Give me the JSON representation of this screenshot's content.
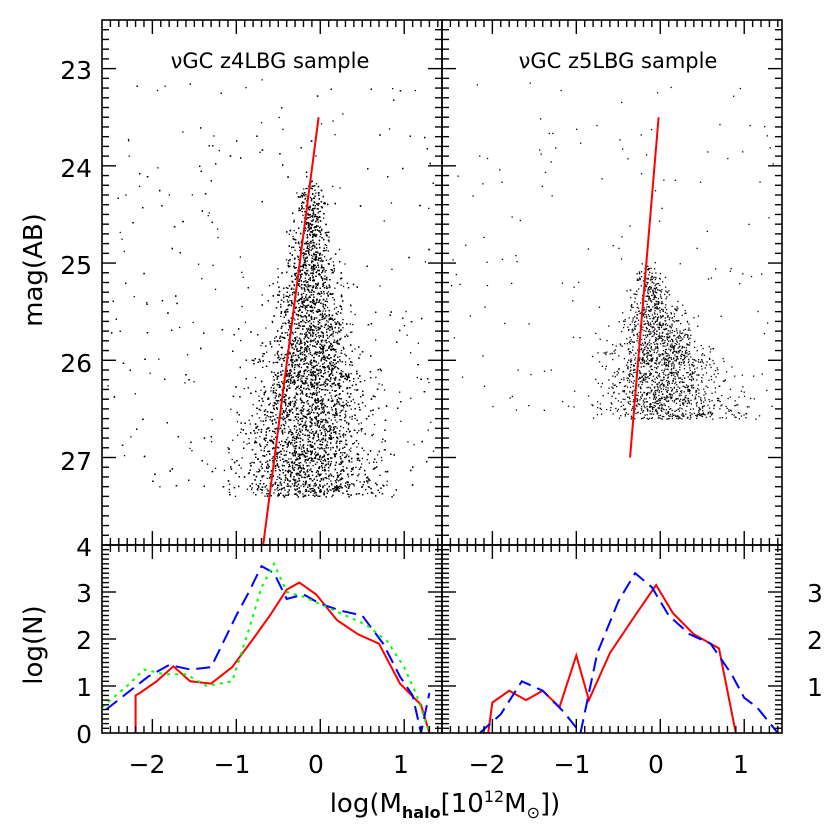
{
  "chart_data": {
    "type": "scatter",
    "x_label": "log(M",
    "x_label_sub": "halo",
    "x_label_unit": "[10",
    "x_label_exp": "12",
    "x_label_sym": "M",
    "x_label_sub2": "⊙",
    "x_label_close": "])",
    "x_range": [
      -2.6,
      1.45
    ],
    "x_ticks": [
      -2,
      -1,
      0,
      1
    ],
    "x_tick_labels": [
      "−2",
      "−1",
      "0",
      "1"
    ],
    "top_panels": [
      {
        "title": "νGC z4LBG sample",
        "ylabel": "mag(AB)",
        "y_range": [
          22.5,
          27.9
        ],
        "y_ticks": [
          23,
          24,
          25,
          26,
          27
        ],
        "y_tick_labels": [
          "23",
          "24",
          "25",
          "26",
          "27"
        ],
        "mag_limit": 27.4,
        "point_count": 9000,
        "fit_line": {
          "x": [
            -0.68,
            -0.02
          ],
          "y": [
            27.9,
            23.5
          ]
        }
      },
      {
        "title": "νGC z5LBG sample",
        "y_range": [
          22.5,
          27.9
        ],
        "mag_limit": 26.6,
        "point_count": 1800,
        "fit_line": {
          "x": [
            -0.36,
            -0.02
          ],
          "y": [
            27.0,
            23.5
          ]
        }
      }
    ],
    "bottom_panels": [
      {
        "ylabel": "log(N)",
        "y_range": [
          0,
          4
        ],
        "y_ticks": [
          0,
          1,
          2,
          3,
          4
        ],
        "y_tick_labels": [
          "0",
          "1",
          "2",
          "3",
          "4"
        ],
        "series": [
          {
            "name": "solid",
            "color": "#ff0000",
            "dash": "",
            "x": [
              -2.2,
              -2.2,
              -2.15,
              -1.95,
              -1.75,
              -1.55,
              -1.3,
              -1.05,
              -0.8,
              -0.6,
              -0.4,
              -0.25,
              -0.05,
              0.2,
              0.45,
              0.7,
              0.95,
              1.2,
              1.3
            ],
            "values": [
              0.0,
              0.8,
              0.85,
              1.1,
              1.42,
              1.1,
              1.05,
              1.4,
              2.0,
              2.5,
              3.05,
              3.2,
              2.95,
              2.4,
              2.1,
              1.9,
              1.05,
              0.6,
              0.0
            ]
          },
          {
            "name": "dashed",
            "color": "#0000ff",
            "dash": "14,7",
            "x": [
              -2.55,
              -2.3,
              -2.05,
              -1.8,
              -1.55,
              -1.3,
              -1.0,
              -0.85,
              -0.7,
              -0.55,
              -0.4,
              -0.2,
              0.0,
              0.25,
              0.5,
              0.75,
              0.95,
              1.1,
              1.2,
              1.3
            ],
            "values": [
              0.5,
              0.85,
              1.2,
              1.45,
              1.35,
              1.4,
              2.5,
              3.0,
              3.55,
              3.4,
              2.85,
              2.95,
              2.75,
              2.6,
              2.5,
              1.9,
              1.2,
              0.8,
              0.0,
              0.85
            ]
          },
          {
            "name": "dotted",
            "color": "#00ff00",
            "dash": "3,5",
            "x": [
              -2.6,
              -2.3,
              -2.1,
              -1.85,
              -1.6,
              -1.35,
              -1.05,
              -0.85,
              -0.7,
              -0.55,
              -0.4,
              -0.2,
              0.05,
              0.3,
              0.55,
              0.8,
              1.0,
              1.15,
              1.3
            ],
            "values": [
              0.55,
              1.0,
              1.35,
              1.25,
              1.25,
              1.0,
              1.1,
              2.2,
              3.1,
              3.6,
              3.0,
              2.9,
              2.7,
              2.5,
              2.3,
              1.95,
              1.4,
              0.8,
              0.0
            ]
          }
        ]
      },
      {
        "y_range": [
          0,
          4
        ],
        "y_tick_labels_right": [
          "1",
          "2",
          "3"
        ],
        "series": [
          {
            "name": "solid",
            "color": "#ff0000",
            "dash": "",
            "x": [
              -2.05,
              -2.0,
              -1.8,
              -1.6,
              -1.4,
              -1.2,
              -1.0,
              -0.85,
              -0.6,
              -0.3,
              -0.05,
              0.15,
              0.4,
              0.7,
              0.9
            ],
            "values": [
              0.0,
              0.65,
              0.9,
              0.7,
              0.9,
              0.55,
              1.65,
              0.7,
              1.7,
              2.5,
              3.15,
              2.55,
              2.1,
              1.8,
              0.0
            ]
          },
          {
            "name": "dashed",
            "color": "#0000ff",
            "dash": "14,7",
            "x": [
              -2.15,
              -1.9,
              -1.65,
              -1.4,
              -1.15,
              -0.95,
              -0.75,
              -0.5,
              -0.3,
              -0.1,
              0.1,
              0.35,
              0.6,
              0.85,
              1.0,
              1.15,
              1.4
            ],
            "values": [
              0.0,
              0.4,
              1.1,
              0.9,
              0.45,
              0.0,
              1.7,
              2.8,
              3.4,
              3.1,
              2.5,
              2.1,
              1.9,
              1.25,
              0.75,
              0.55,
              0.0
            ]
          }
        ]
      }
    ]
  }
}
